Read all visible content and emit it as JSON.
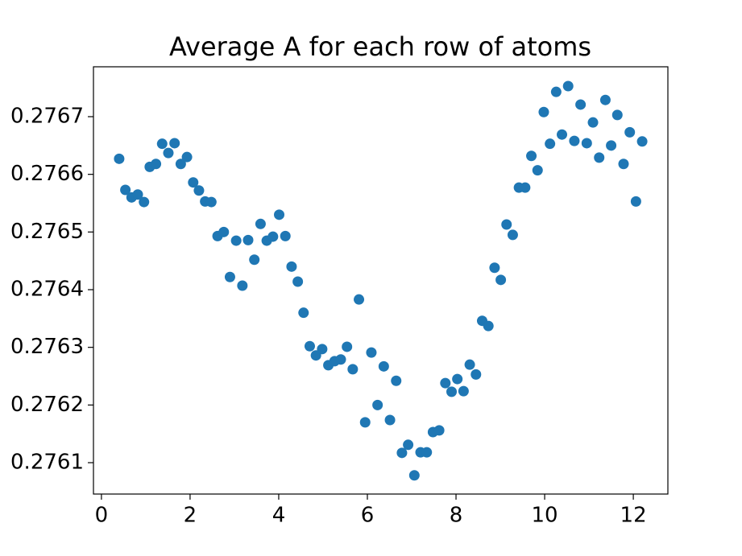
{
  "chart_data": {
    "type": "scatter",
    "title": "Average A for each row of atoms",
    "x": [
      0.4,
      0.54,
      0.68,
      0.82,
      0.96,
      1.09,
      1.23,
      1.37,
      1.51,
      1.65,
      1.79,
      1.93,
      2.07,
      2.2,
      2.34,
      2.48,
      2.62,
      2.76,
      2.9,
      3.04,
      3.18,
      3.31,
      3.45,
      3.59,
      3.73,
      3.87,
      4.01,
      4.15,
      4.29,
      4.43,
      4.56,
      4.7,
      4.84,
      4.98,
      5.12,
      5.26,
      5.4,
      5.54,
      5.67,
      5.81,
      5.95,
      6.09,
      6.23,
      6.37,
      6.51,
      6.65,
      6.78,
      6.92,
      7.06,
      7.2,
      7.34,
      7.48,
      7.62,
      7.76,
      7.9,
      8.03,
      8.17,
      8.31,
      8.45,
      8.59,
      8.73,
      8.87,
      9.01,
      9.14,
      9.28,
      9.42,
      9.56,
      9.7,
      9.84,
      9.98,
      10.12,
      10.26,
      10.39,
      10.53,
      10.67,
      10.81,
      10.95,
      11.09,
      11.23,
      11.37,
      11.5,
      11.64,
      11.78,
      11.92,
      12.06,
      12.2
    ],
    "values": [
      0.276627,
      0.276573,
      0.27656,
      0.276565,
      0.276552,
      0.276613,
      0.276618,
      0.276653,
      0.276637,
      0.276654,
      0.276618,
      0.27663,
      0.276586,
      0.276572,
      0.276553,
      0.276552,
      0.276493,
      0.2765,
      0.276422,
      0.276485,
      0.276407,
      0.276486,
      0.276452,
      0.276514,
      0.276485,
      0.276492,
      0.27653,
      0.276493,
      0.27644,
      0.276414,
      0.27636,
      0.276302,
      0.276286,
      0.276297,
      0.276269,
      0.276276,
      0.276279,
      0.276301,
      0.276262,
      0.276383,
      0.27617,
      0.276291,
      0.2762,
      0.276267,
      0.276174,
      0.276242,
      0.276117,
      0.276131,
      0.276078,
      0.276118,
      0.276118,
      0.276153,
      0.276156,
      0.276238,
      0.276223,
      0.276245,
      0.276224,
      0.27627,
      0.276253,
      0.276346,
      0.276337,
      0.276438,
      0.276417,
      0.276513,
      0.276495,
      0.276577,
      0.276577,
      0.276632,
      0.276607,
      0.276708,
      0.276653,
      0.276743,
      0.276669,
      0.276753,
      0.276658,
      0.276721,
      0.276654,
      0.27669,
      0.276629,
      0.276729,
      0.27665,
      0.276703,
      0.276618,
      0.276673,
      0.276553,
      0.276657
    ],
    "color": "#1f77b4",
    "xlim": [
      -0.18,
      12.78
    ],
    "xticks": [
      0,
      2,
      4,
      6,
      8,
      10,
      12
    ],
    "ylim": [
      0.2760456,
      0.2767865
    ],
    "yticks": [
      0.2761,
      0.2762,
      0.2763,
      0.2764,
      0.2765,
      0.2766,
      0.2767
    ],
    "grid": false
  }
}
